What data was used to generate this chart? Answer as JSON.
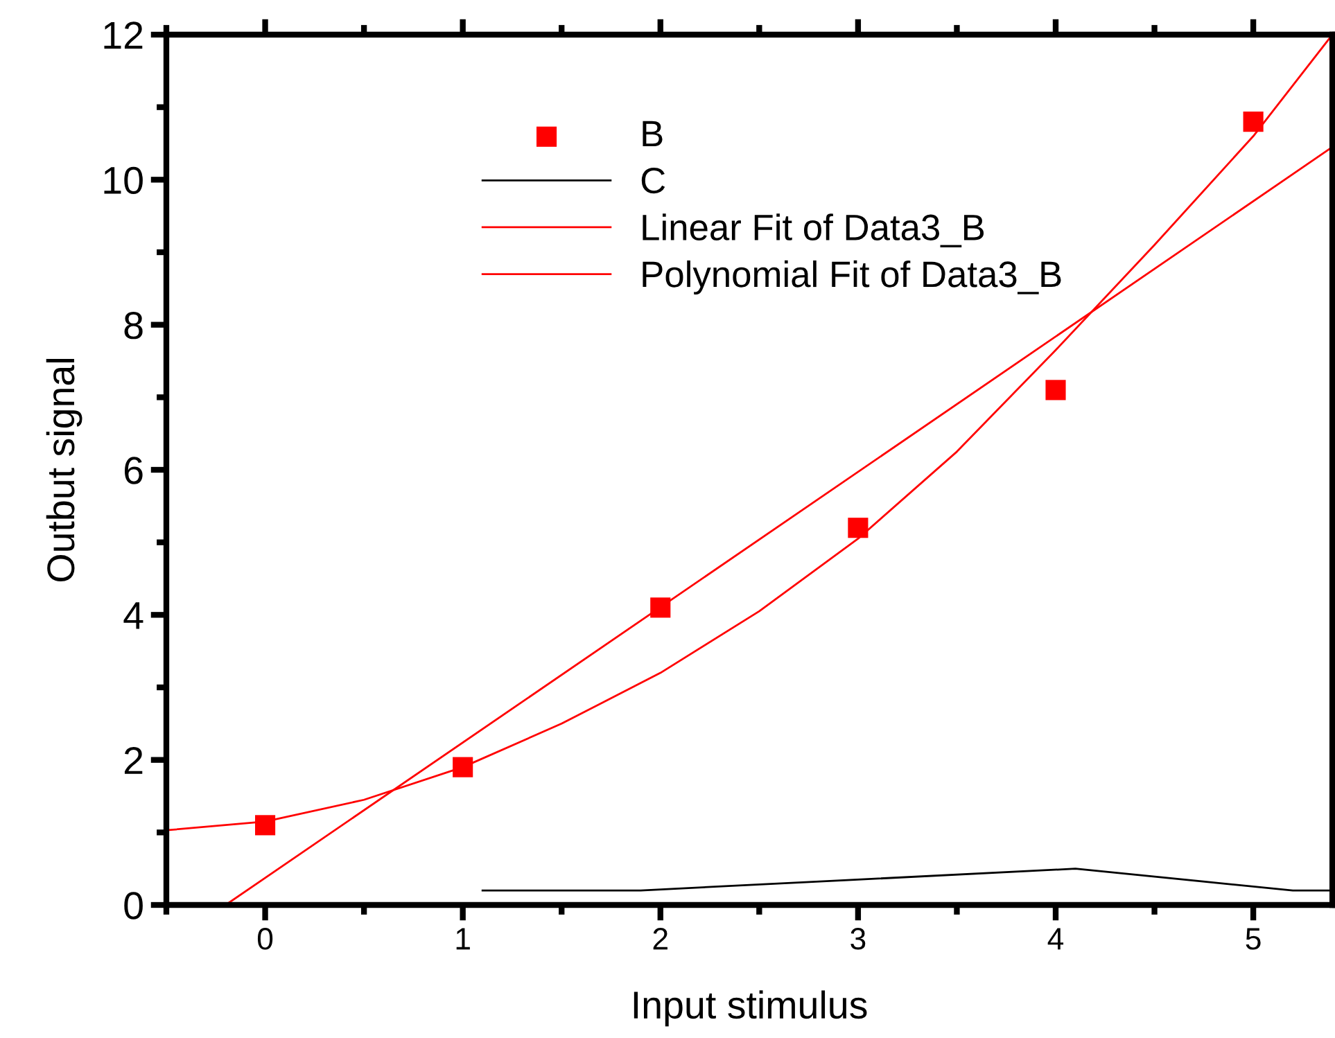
{
  "chart_data": {
    "type": "scatter",
    "xlabel": "Input stimulus",
    "ylabel": "Outbut signal",
    "xlim": [
      -0.5,
      5.4
    ],
    "ylim": [
      0,
      12
    ],
    "xticks": [
      0,
      1,
      2,
      3,
      4,
      5
    ],
    "yticks": [
      0,
      2,
      4,
      6,
      8,
      10,
      12
    ],
    "grid": false,
    "legend": "top",
    "marker": "square",
    "series": [
      {
        "name": "B",
        "color": "#ff0000",
        "x": [
          0,
          1,
          2,
          3,
          4,
          5
        ],
        "values": [
          1.1,
          1.9,
          4.1,
          5.2,
          7.1,
          10.8
        ]
      },
      {
        "name": "C",
        "type": "line",
        "color": "#000000",
        "marker": "none",
        "x": [
          1.1,
          1.9,
          4.1,
          5.2,
          5.4
        ],
        "values": [
          0.2,
          0.2,
          0.5,
          0.2,
          0.2
        ]
      },
      {
        "name": "Linear Fit of Data3_B",
        "type": "line",
        "color": "#ff0000",
        "marker": "none",
        "x": [
          -0.2,
          5.4
        ],
        "values": [
          0,
          10.45
        ]
      },
      {
        "name": "Polynomial Fit of Data3_B",
        "type": "line",
        "color": "#ff0000",
        "marker": "none",
        "x": [
          -0.5,
          0,
          0.5,
          1,
          1.5,
          2,
          2.5,
          3,
          3.5,
          4,
          4.5,
          5,
          5.4
        ],
        "values": [
          1.03,
          1.15,
          1.45,
          1.9,
          2.5,
          3.2,
          4.05,
          5.05,
          6.25,
          7.65,
          9.1,
          10.6,
          12.0
        ]
      }
    ]
  }
}
